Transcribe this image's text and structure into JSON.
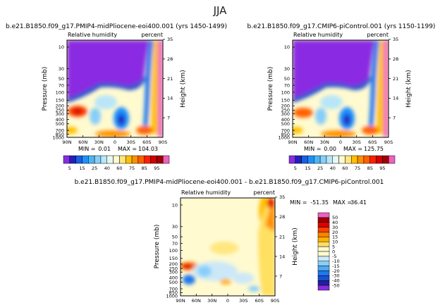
{
  "page_title": "JJA",
  "chart_data": [
    {
      "type": "heatmap",
      "title": "b.e21.B1850.f09_g17.PMIP4-midPliocene-eoi400.001 (yrs 1450-1499)",
      "subtitle_left": "Relative humidity",
      "subtitle_right": "percent",
      "xlabel": "",
      "ylabel": "Pressure (mb)",
      "ylabel_right": "Height (km)",
      "x_ticks": [
        "90N",
        "60N",
        "30N",
        "0",
        "30S",
        "60S",
        "90S"
      ],
      "y_ticks": [
        "10",
        "30",
        "50",
        "70",
        "100",
        "150",
        "200",
        "250",
        "300",
        "400",
        "500",
        "700",
        "850",
        "1000"
      ],
      "y_right_ticks": [
        "35",
        "28",
        "21",
        "14",
        "7"
      ],
      "scale": "log-pressure",
      "stats": {
        "min_label": "MIN =",
        "min": "0.01",
        "max_label": "MAX =",
        "max": "104.03"
      }
    },
    {
      "type": "heatmap",
      "title": "b.e21.B1850.f09_g17.CMIP6-piControl.001 (yrs 1150-1199)",
      "subtitle_left": "Relative humidity",
      "subtitle_right": "percent",
      "xlabel": "",
      "ylabel": "Pressure (mb)",
      "ylabel_right": "Height (km)",
      "x_ticks": [
        "90N",
        "60N",
        "30N",
        "0",
        "30S",
        "60S",
        "90S"
      ],
      "y_ticks": [
        "10",
        "30",
        "50",
        "70",
        "100",
        "150",
        "200",
        "250",
        "300",
        "400",
        "500",
        "700",
        "850",
        "1000"
      ],
      "y_right_ticks": [
        "35",
        "28",
        "21",
        "14",
        "7"
      ],
      "scale": "log-pressure",
      "stats": {
        "min_label": "MIN =",
        "min": "0.00",
        "max_label": "MAX =",
        "max": "125.75"
      }
    },
    {
      "type": "heatmap",
      "title": "b.e21.B1850.f09_g17.PMIP4-midPliocene-eoi400.001 - b.e21.B1850.f09_g17.CMIP6-piControl.001",
      "subtitle_left": "Relative humidity",
      "subtitle_right": "percent",
      "xlabel": "",
      "ylabel": "Pressure (mb)",
      "ylabel_right": "Height (km)",
      "x_ticks": [
        "90N",
        "60N",
        "30N",
        "0",
        "30S",
        "60S",
        "90S"
      ],
      "y_ticks": [
        "10",
        "30",
        "50",
        "70",
        "100",
        "150",
        "200",
        "250",
        "300",
        "400",
        "500",
        "700",
        "850",
        "1000"
      ],
      "y_right_ticks": [
        "35",
        "28",
        "21",
        "14",
        "7"
      ],
      "scale": "log-pressure",
      "stats": {
        "min_label": "MIN =",
        "min": "-51.35",
        "max_label": "MAX =",
        "max": "36.41"
      }
    }
  ],
  "colorbar_abs": {
    "labels": [
      "5",
      "15",
      "25",
      "40",
      "60",
      "75",
      "85",
      "95"
    ],
    "colors": [
      "#8a2be2",
      "#2020c0",
      "#1b5fe0",
      "#1e90ff",
      "#4fb5f0",
      "#87cefa",
      "#b8e6f8",
      "#e8f8f0",
      "#fffad0",
      "#ffe680",
      "#ffc000",
      "#ff9000",
      "#ff6000",
      "#ff2000",
      "#d00000",
      "#a00000",
      "#f060c0"
    ]
  },
  "colorbar_diff": {
    "labels": [
      "50",
      "40",
      "30",
      "20",
      "15",
      "10",
      "5",
      "0",
      "-5",
      "-10",
      "-15",
      "-20",
      "-30",
      "-40",
      "-50"
    ],
    "colors": [
      "#f060c0",
      "#a00000",
      "#e00000",
      "#ff4000",
      "#ff8000",
      "#ffb000",
      "#ffe060",
      "#fffad0",
      "#fffad0",
      "#cce8f8",
      "#87cefa",
      "#4fa8f0",
      "#1e78f0",
      "#1b4fd0",
      "#2020a0",
      "#8a2be2"
    ]
  }
}
